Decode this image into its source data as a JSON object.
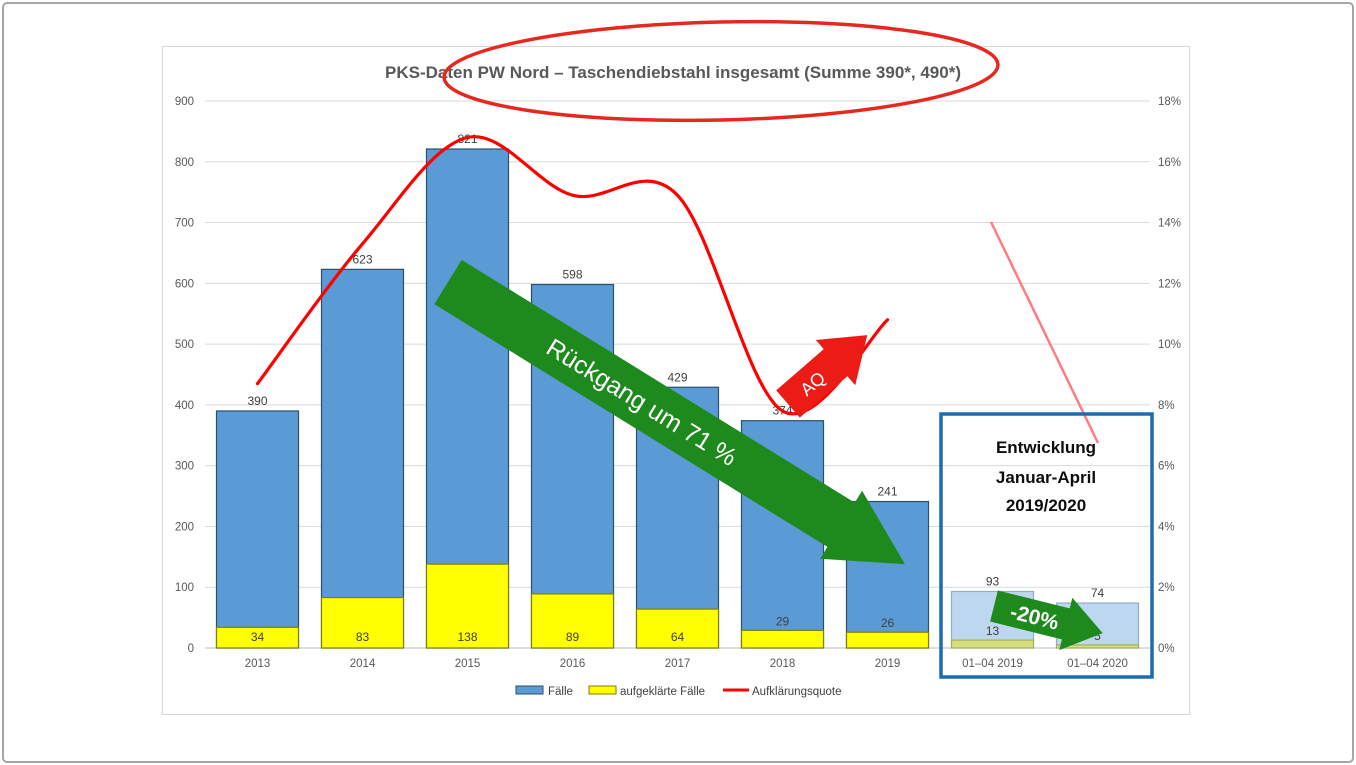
{
  "chart_data": {
    "type": "bar+line combo",
    "title": "PKS-Daten PW Nord – Taschendiebstahl insgesamt (Summe 390*, 490*)",
    "categories": [
      "2013",
      "2014",
      "2015",
      "2016",
      "2017",
      "2018",
      "2019",
      "01–04 2019",
      "01–04 2020"
    ],
    "series": [
      {
        "name": "Fälle",
        "type": "bar",
        "axis": "left",
        "values": [
          390,
          623,
          821,
          598,
          429,
          374,
          241,
          93,
          74
        ]
      },
      {
        "name": "aufgeklärte Fälle",
        "type": "bar",
        "axis": "left",
        "values": [
          34,
          83,
          138,
          89,
          64,
          29,
          26,
          13,
          5
        ]
      },
      {
        "name": "Aufklärungsquote",
        "type": "smooth-line",
        "axis": "right",
        "unit": "%",
        "values": [
          8.7,
          13.3,
          16.8,
          14.9,
          14.9,
          7.8,
          10.8,
          null,
          null
        ]
      }
    ],
    "left_axis": {
      "min": 0,
      "max": 900,
      "step": 100,
      "ticks": [
        0,
        100,
        200,
        300,
        400,
        500,
        600,
        700,
        800,
        900
      ]
    },
    "right_axis": {
      "min": 0,
      "max": 18,
      "ticks": [
        "0%",
        "2%",
        "4%",
        "6%",
        "8%",
        "10%",
        "12%",
        "14%",
        "16%",
        "18%"
      ]
    },
    "grid": "horizontal",
    "legend_position": "bottom"
  },
  "annotations": {
    "title_circled": true,
    "big_arrow_label": "Rückgang um 71 %",
    "aq_arrow_label": "AQ",
    "inset_title_line1": "Entwicklung",
    "inset_title_line2": "Januar-April",
    "inset_title_line3": "2019/2020",
    "inset_arrow_label": "-20%"
  },
  "colors": {
    "bar_blue": "#5B9BD5",
    "bar_blue_border": "#2E4E6E",
    "bar_yellow": "#FFFF00",
    "bar_yellow_border": "#7F7F00",
    "inset_bar_blue": "#BDD7EE",
    "inset_bar_blue_border": "#8FAFC9",
    "inset_bar_green": "#D5DF7B",
    "inset_bar_green_border": "#A3B05A",
    "aq_line_red": "#FF0000",
    "annotation_ellipse_red": "#E8281E",
    "annotation_pink": "#FF7C80",
    "arrow_green": "#1E8A1E",
    "arrow_red": "#EC1B16",
    "inset_box_blue": "#1B6CB0",
    "gridline": "#DADADA",
    "axis_line": "#BFBFBF",
    "axis_text": "#595959",
    "label_text": "#404040"
  }
}
